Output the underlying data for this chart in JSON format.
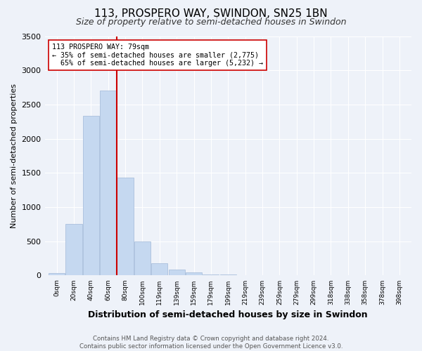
{
  "title": "113, PROSPERO WAY, SWINDON, SN25 1BN",
  "subtitle": "Size of property relative to semi-detached houses in Swindon",
  "xlabel": "Distribution of semi-detached houses by size in Swindon",
  "ylabel": "Number of semi-detached properties",
  "bar_labels": [
    "0sqm",
    "20sqm",
    "40sqm",
    "60sqm",
    "80sqm",
    "100sqm",
    "119sqm",
    "139sqm",
    "159sqm",
    "179sqm",
    "199sqm",
    "219sqm",
    "239sqm",
    "259sqm",
    "279sqm",
    "299sqm",
    "318sqm",
    "338sqm",
    "358sqm",
    "378sqm",
    "398sqm"
  ],
  "bar_heights": [
    40,
    750,
    2330,
    2700,
    1430,
    500,
    175,
    90,
    50,
    10,
    10,
    5,
    2,
    2,
    1,
    1,
    0,
    0,
    0,
    0,
    0
  ],
  "bar_color": "#c5d8f0",
  "bar_edge_color": "#a0b8d8",
  "property_label": "113 PROSPERO WAY: 79sqm",
  "pct_smaller": 35,
  "pct_larger": 65,
  "n_smaller": 2775,
  "n_larger": 5232,
  "vline_x_index": 4,
  "vline_color": "#cc0000",
  "ylim": [
    0,
    3500
  ],
  "yticks": [
    0,
    500,
    1000,
    1500,
    2000,
    2500,
    3000,
    3500
  ],
  "annotation_box_color": "#ffffff",
  "annotation_box_edge": "#cc0000",
  "bg_color": "#eef2f9",
  "footer": "Contains HM Land Registry data © Crown copyright and database right 2024.\nContains public sector information licensed under the Open Government Licence v3.0.",
  "title_fontsize": 11,
  "subtitle_fontsize": 9,
  "xlabel_fontsize": 9,
  "ylabel_fontsize": 8
}
